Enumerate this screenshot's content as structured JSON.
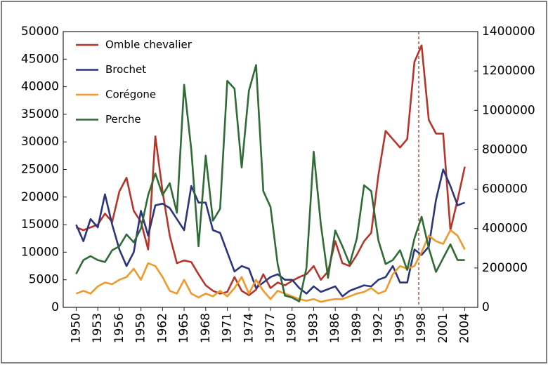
{
  "chart_data": {
    "type": "line",
    "x": [
      1950,
      1951,
      1952,
      1953,
      1954,
      1955,
      1956,
      1957,
      1958,
      1959,
      1960,
      1961,
      1962,
      1963,
      1964,
      1965,
      1966,
      1967,
      1968,
      1969,
      1970,
      1971,
      1972,
      1973,
      1974,
      1975,
      1976,
      1977,
      1978,
      1979,
      1980,
      1981,
      1982,
      1983,
      1984,
      1985,
      1986,
      1987,
      1988,
      1989,
      1990,
      1991,
      1992,
      1993,
      1994,
      1995,
      1996,
      1997,
      1998,
      1999,
      2000,
      2001,
      2002,
      2003,
      2004
    ],
    "series": [
      {
        "name": "Omble chevalier",
        "color": "#b5352a",
        "values": [
          14500,
          14000,
          14500,
          15000,
          17000,
          15500,
          21000,
          23500,
          17500,
          15500,
          10500,
          31000,
          21000,
          13000,
          8000,
          8500,
          8200,
          6000,
          4000,
          3000,
          2500,
          2800,
          5500,
          3000,
          2200,
          3200,
          6000,
          3500,
          4500,
          4000,
          4800,
          5500,
          6000,
          7500,
          5000,
          6500,
          12000,
          8000,
          7500,
          9500,
          12000,
          13500,
          24000,
          32000,
          30500,
          29000,
          30500,
          44500,
          47500,
          34000,
          31500,
          31500,
          14000,
          19500,
          25500
        ]
      },
      {
        "name": "Brochet",
        "color": "#2a3580",
        "values": [
          15000,
          12000,
          16000,
          14500,
          20500,
          15000,
          10500,
          7500,
          10000,
          17500,
          13000,
          18500,
          18800,
          18000,
          16000,
          14000,
          22000,
          19000,
          19000,
          14000,
          13500,
          10000,
          6500,
          7500,
          7000,
          3500,
          4500,
          5500,
          6000,
          5000,
          5000,
          3500,
          2500,
          3800,
          2800,
          3300,
          3800,
          2000,
          3000,
          3500,
          4000,
          3800,
          5000,
          5500,
          7500,
          4500,
          4500,
          10500,
          9500,
          11000,
          19500,
          25000,
          22000,
          18500,
          19000
        ]
      },
      {
        "name": "Corégone",
        "color": "#f0982a",
        "values": [
          2500,
          3000,
          2500,
          3800,
          4500,
          4200,
          5000,
          5500,
          7000,
          5000,
          8000,
          7500,
          5500,
          3000,
          2500,
          5000,
          2500,
          1800,
          2500,
          2000,
          3000,
          2000,
          3500,
          5500,
          2500,
          5000,
          3000,
          1500,
          3000,
          2500,
          2000,
          1500,
          1200,
          1500,
          1000,
          1300,
          1500,
          1500,
          2000,
          2500,
          2800,
          3500,
          2500,
          3000,
          6000,
          7500,
          7000,
          7500,
          10000,
          13000,
          12000,
          11500,
          14000,
          13000,
          10500
        ]
      },
      {
        "name": "Perche",
        "color": "#2f6b35",
        "axis": "y2",
        "values": [
          170000,
          240000,
          260000,
          240000,
          230000,
          290000,
          310000,
          370000,
          330000,
          400000,
          570000,
          680000,
          570000,
          630000,
          480000,
          1130000,
          800000,
          310000,
          770000,
          440000,
          500000,
          1150000,
          1110000,
          710000,
          1100000,
          1230000,
          590000,
          510000,
          220000,
          60000,
          50000,
          30000,
          200000,
          790000,
          420000,
          150000,
          390000,
          310000,
          220000,
          350000,
          620000,
          590000,
          340000,
          220000,
          240000,
          290000,
          190000,
          350000,
          460000,
          300000,
          180000,
          250000,
          320000,
          240000,
          240000
        ]
      }
    ],
    "xlim": [
      1948.2,
      2005.8
    ],
    "xticks": [
      1950,
      1953,
      1956,
      1959,
      1962,
      1965,
      1968,
      1971,
      1974,
      1977,
      1980,
      1983,
      1986,
      1989,
      1992,
      1995,
      1998,
      2001,
      2004
    ],
    "ylim": [
      0,
      50000
    ],
    "yticks": [
      0,
      5000,
      10000,
      15000,
      20000,
      25000,
      30000,
      35000,
      40000,
      45000,
      50000
    ],
    "y2lim": [
      0,
      1400000
    ],
    "y2ticks": [
      0,
      200000,
      400000,
      600000,
      800000,
      1000000,
      1200000,
      1400000
    ],
    "reference_line": {
      "x": 1997.6,
      "color": "#b5352a"
    },
    "legend": "top-left"
  }
}
